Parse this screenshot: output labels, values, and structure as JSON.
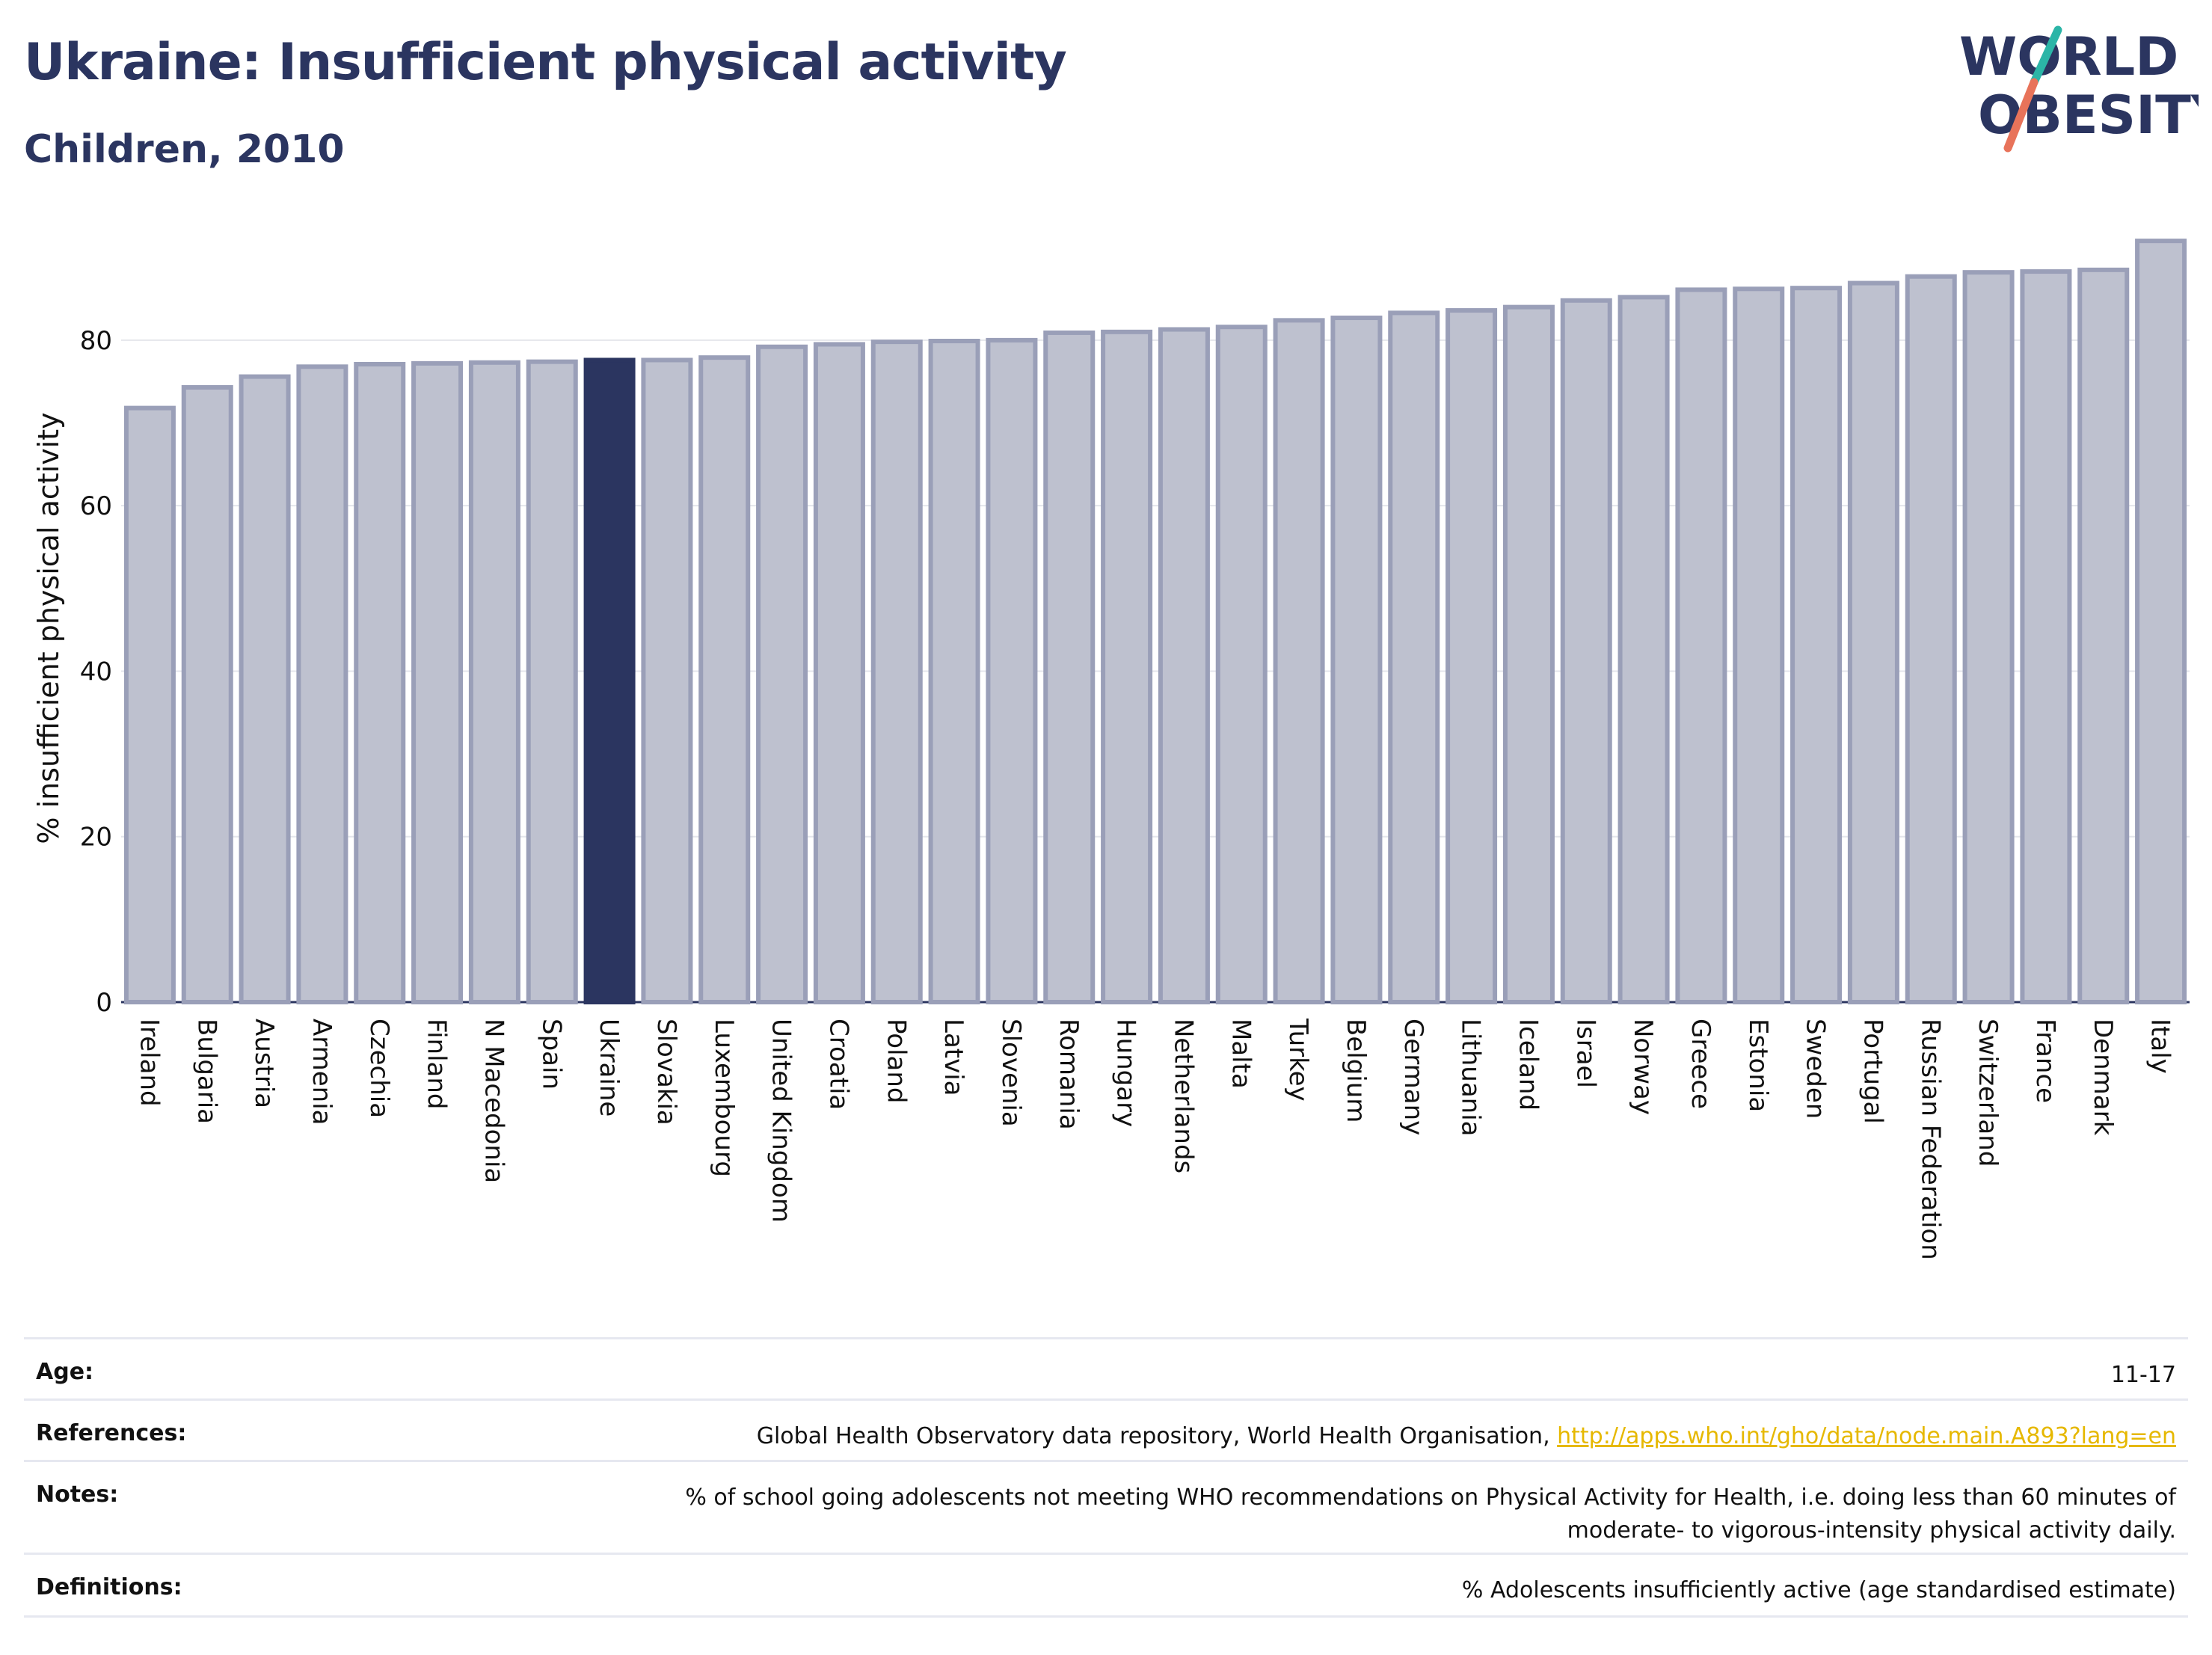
{
  "header": {
    "title": "Ukraine: Insufficient physical activity",
    "subtitle": "Children, 2010"
  },
  "logo": {
    "line1": "WORLD",
    "line2": "OBESITY",
    "accent_colors": [
      "#2bb5a7",
      "#e8735a"
    ]
  },
  "chart_data": {
    "type": "bar",
    "highlight": "Ukraine",
    "highlight_color": "#2b3560",
    "bar_color": "#bec1cf",
    "bar_edge_color": "#9a9fb8",
    "categories": [
      "Ireland",
      "Bulgaria",
      "Austria",
      "Armenia",
      "Czechia",
      "Finland",
      "N Macedonia",
      "Spain",
      "Ukraine",
      "Slovakia",
      "Luxembourg",
      "United Kingdom",
      "Croatia",
      "Poland",
      "Latvia",
      "Slovenia",
      "Romania",
      "Hungary",
      "Netherlands",
      "Malta",
      "Turkey",
      "Belgium",
      "Germany",
      "Lithuania",
      "Iceland",
      "Israel",
      "Norway",
      "Greece",
      "Estonia",
      "Sweden",
      "Portugal",
      "Russian Federation",
      "Switzerland",
      "France",
      "Denmark",
      "Italy"
    ],
    "values": [
      71.8,
      74.3,
      75.6,
      76.8,
      77.1,
      77.2,
      77.3,
      77.4,
      77.6,
      77.6,
      77.9,
      79.2,
      79.5,
      79.8,
      79.9,
      80.0,
      80.9,
      81.0,
      81.3,
      81.6,
      82.4,
      82.7,
      83.3,
      83.6,
      84.0,
      84.8,
      85.2,
      86.1,
      86.2,
      86.3,
      86.9,
      87.7,
      88.2,
      88.3,
      88.5,
      92.0
    ],
    "ylabel": "% insufficient physical activity",
    "yticks": [
      0,
      20,
      40,
      60,
      80
    ],
    "ylim": [
      0,
      94
    ],
    "grid": true
  },
  "info": {
    "age": {
      "label": "Age:",
      "value": "11-17"
    },
    "references": {
      "label": "References:",
      "text": "Global Health Observatory data repository, World Health Organisation, ",
      "link": "http://apps.who.int/gho/data/node.main.A893?lang=en"
    },
    "notes": {
      "label": "Notes:",
      "line1": "% of school going adolescents not meeting WHO recommendations on Physical Activity for Health, i.e. doing less than 60 minutes of",
      "line2": "moderate- to vigorous-intensity physical activity daily."
    },
    "definitions": {
      "label": "Definitions:",
      "value": "% Adolescents insufficiently active (age standardised estimate)"
    }
  }
}
